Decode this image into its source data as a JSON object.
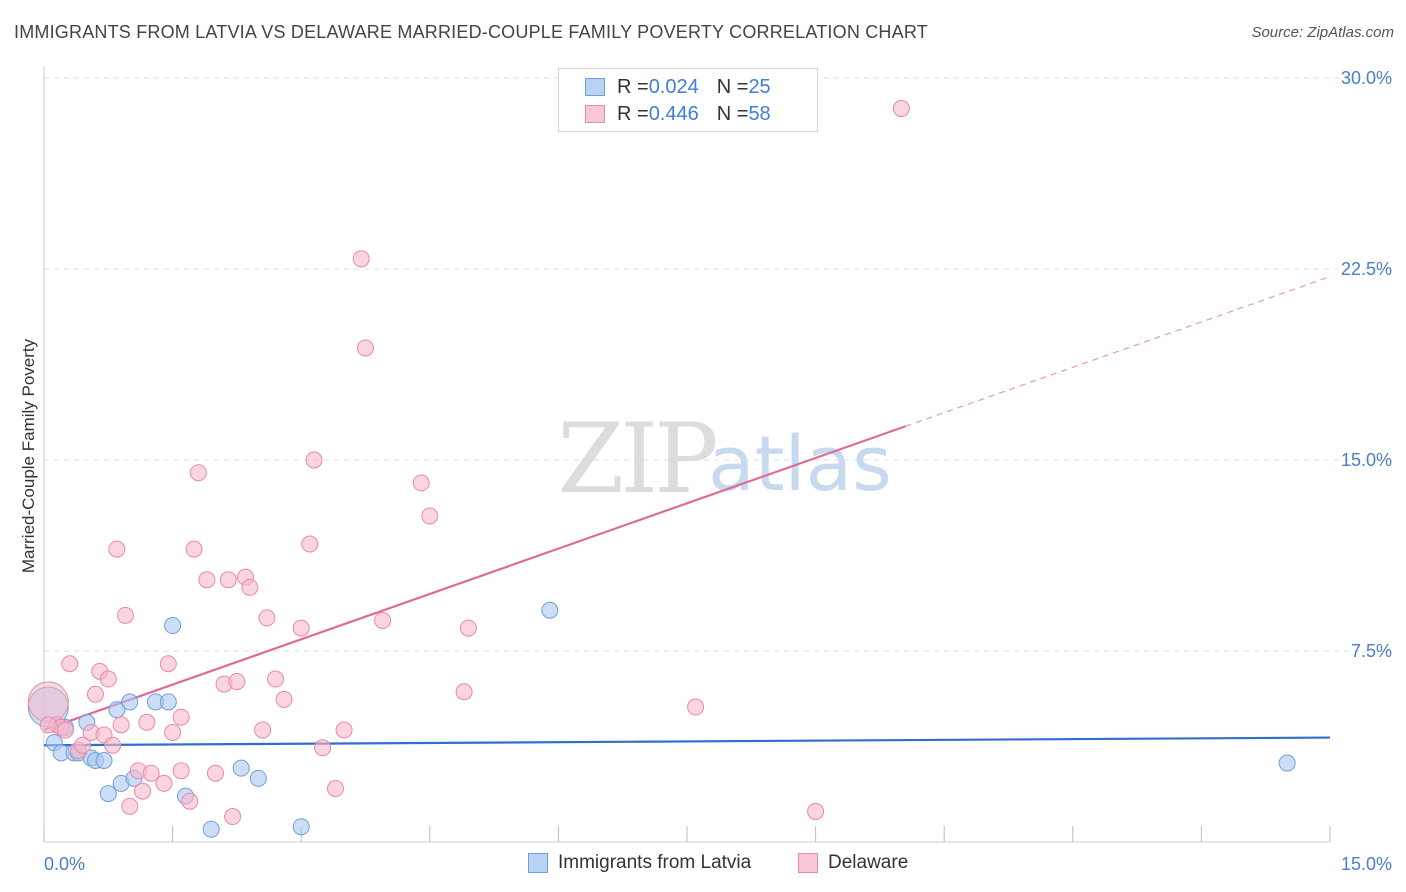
{
  "header": {
    "title": "IMMIGRANTS FROM LATVIA VS DELAWARE MARRIED-COUPLE FAMILY POVERTY CORRELATION CHART",
    "source": "Source: ZipAtlas.com"
  },
  "watermark": {
    "zip": "ZIP",
    "atlas": "atlas"
  },
  "legend": {
    "series1": {
      "r_label": "R = ",
      "r_value": "0.024",
      "n_label": "N = ",
      "n_value": "25"
    },
    "series2": {
      "r_label": "R = ",
      "r_value": "0.446",
      "n_label": "N = ",
      "n_value": "58"
    }
  },
  "bottom_legend": {
    "series1": "Immigrants from Latvia",
    "series2": "Delaware"
  },
  "colors": {
    "blue_fill": "#aac8ef",
    "blue_stroke": "#6f9fd8",
    "blue_line": "#2f6fcf",
    "pink_fill": "#f6b8cb",
    "pink_stroke": "#e98aa8",
    "pink_line": "#e06a97",
    "grid": "#dddddd",
    "tick": "#4a7ec7"
  },
  "chart_data": {
    "type": "scatter",
    "title": "IMMIGRANTS FROM LATVIA VS DELAWARE MARRIED-COUPLE FAMILY POVERTY CORRELATION CHART",
    "xlabel": "",
    "ylabel": "Married-Couple Family Poverty",
    "xlim": [
      0,
      15
    ],
    "ylim": [
      0,
      30
    ],
    "x_ticks": [
      0,
      15
    ],
    "x_tick_labels": [
      "0.0%",
      "15.0%"
    ],
    "y_ticks": [
      7.5,
      15,
      22.5,
      30
    ],
    "y_tick_labels": [
      "7.5%",
      "15.0%",
      "22.5%",
      "30.0%"
    ],
    "grid": true,
    "series": [
      {
        "name": "Immigrants from Latvia",
        "color": "blue",
        "r": 0.024,
        "n": 25,
        "trend": {
          "x": [
            0,
            15
          ],
          "y": [
            3.8,
            4.1
          ],
          "dashed_from": null
        },
        "points": [
          [
            0.05,
            5.3
          ],
          [
            0.12,
            3.9
          ],
          [
            0.2,
            3.5
          ],
          [
            0.25,
            4.5
          ],
          [
            0.35,
            3.5
          ],
          [
            0.4,
            3.5
          ],
          [
            0.5,
            4.7
          ],
          [
            0.55,
            3.3
          ],
          [
            0.6,
            3.2
          ],
          [
            0.7,
            3.2
          ],
          [
            0.75,
            1.9
          ],
          [
            0.9,
            2.3
          ],
          [
            0.85,
            5.2
          ],
          [
            1.0,
            5.5
          ],
          [
            1.05,
            2.5
          ],
          [
            1.3,
            5.5
          ],
          [
            1.45,
            5.5
          ],
          [
            1.5,
            8.5
          ],
          [
            1.65,
            1.8
          ],
          [
            1.95,
            0.5
          ],
          [
            2.3,
            2.9
          ],
          [
            2.5,
            2.5
          ],
          [
            3.0,
            0.6
          ],
          [
            5.9,
            9.1
          ],
          [
            14.5,
            3.1
          ]
        ]
      },
      {
        "name": "Delaware",
        "color": "pink",
        "r": 0.446,
        "n": 58,
        "trend": {
          "x": [
            0,
            15
          ],
          "y": [
            4.4,
            22.2
          ],
          "dashed_from": 10.05
        },
        "points": [
          [
            0.05,
            5.5
          ],
          [
            0.15,
            4.6
          ],
          [
            0.2,
            4.5
          ],
          [
            0.25,
            4.4
          ],
          [
            0.3,
            7.0
          ],
          [
            0.4,
            3.6
          ],
          [
            0.45,
            3.8
          ],
          [
            0.55,
            4.3
          ],
          [
            0.6,
            5.8
          ],
          [
            0.65,
            6.7
          ],
          [
            0.7,
            4.2
          ],
          [
            0.75,
            6.4
          ],
          [
            0.8,
            3.8
          ],
          [
            0.85,
            11.5
          ],
          [
            0.9,
            4.6
          ],
          [
            0.95,
            8.9
          ],
          [
            1.0,
            1.4
          ],
          [
            1.1,
            2.8
          ],
          [
            1.15,
            2.0
          ],
          [
            1.2,
            4.7
          ],
          [
            1.25,
            2.7
          ],
          [
            1.4,
            2.3
          ],
          [
            1.45,
            7.0
          ],
          [
            1.5,
            4.3
          ],
          [
            1.6,
            2.8
          ],
          [
            1.6,
            4.9
          ],
          [
            1.7,
            1.6
          ],
          [
            1.75,
            11.5
          ],
          [
            1.8,
            14.5
          ],
          [
            1.9,
            10.3
          ],
          [
            2.0,
            2.7
          ],
          [
            2.1,
            6.2
          ],
          [
            2.15,
            10.3
          ],
          [
            2.2,
            1.0
          ],
          [
            2.25,
            6.3
          ],
          [
            2.35,
            10.4
          ],
          [
            2.4,
            10.0
          ],
          [
            2.55,
            4.4
          ],
          [
            2.6,
            8.8
          ],
          [
            2.7,
            6.4
          ],
          [
            2.8,
            5.6
          ],
          [
            3.0,
            8.4
          ],
          [
            3.1,
            11.7
          ],
          [
            3.15,
            15.0
          ],
          [
            3.25,
            3.7
          ],
          [
            3.4,
            2.1
          ],
          [
            3.5,
            4.4
          ],
          [
            3.7,
            22.9
          ],
          [
            3.75,
            19.4
          ],
          [
            3.95,
            8.7
          ],
          [
            4.4,
            14.1
          ],
          [
            4.5,
            12.8
          ],
          [
            4.9,
            5.9
          ],
          [
            4.95,
            8.4
          ],
          [
            7.6,
            5.3
          ],
          [
            9.0,
            1.2
          ],
          [
            10.0,
            28.8
          ],
          [
            0.05,
            4.6
          ]
        ]
      }
    ]
  }
}
